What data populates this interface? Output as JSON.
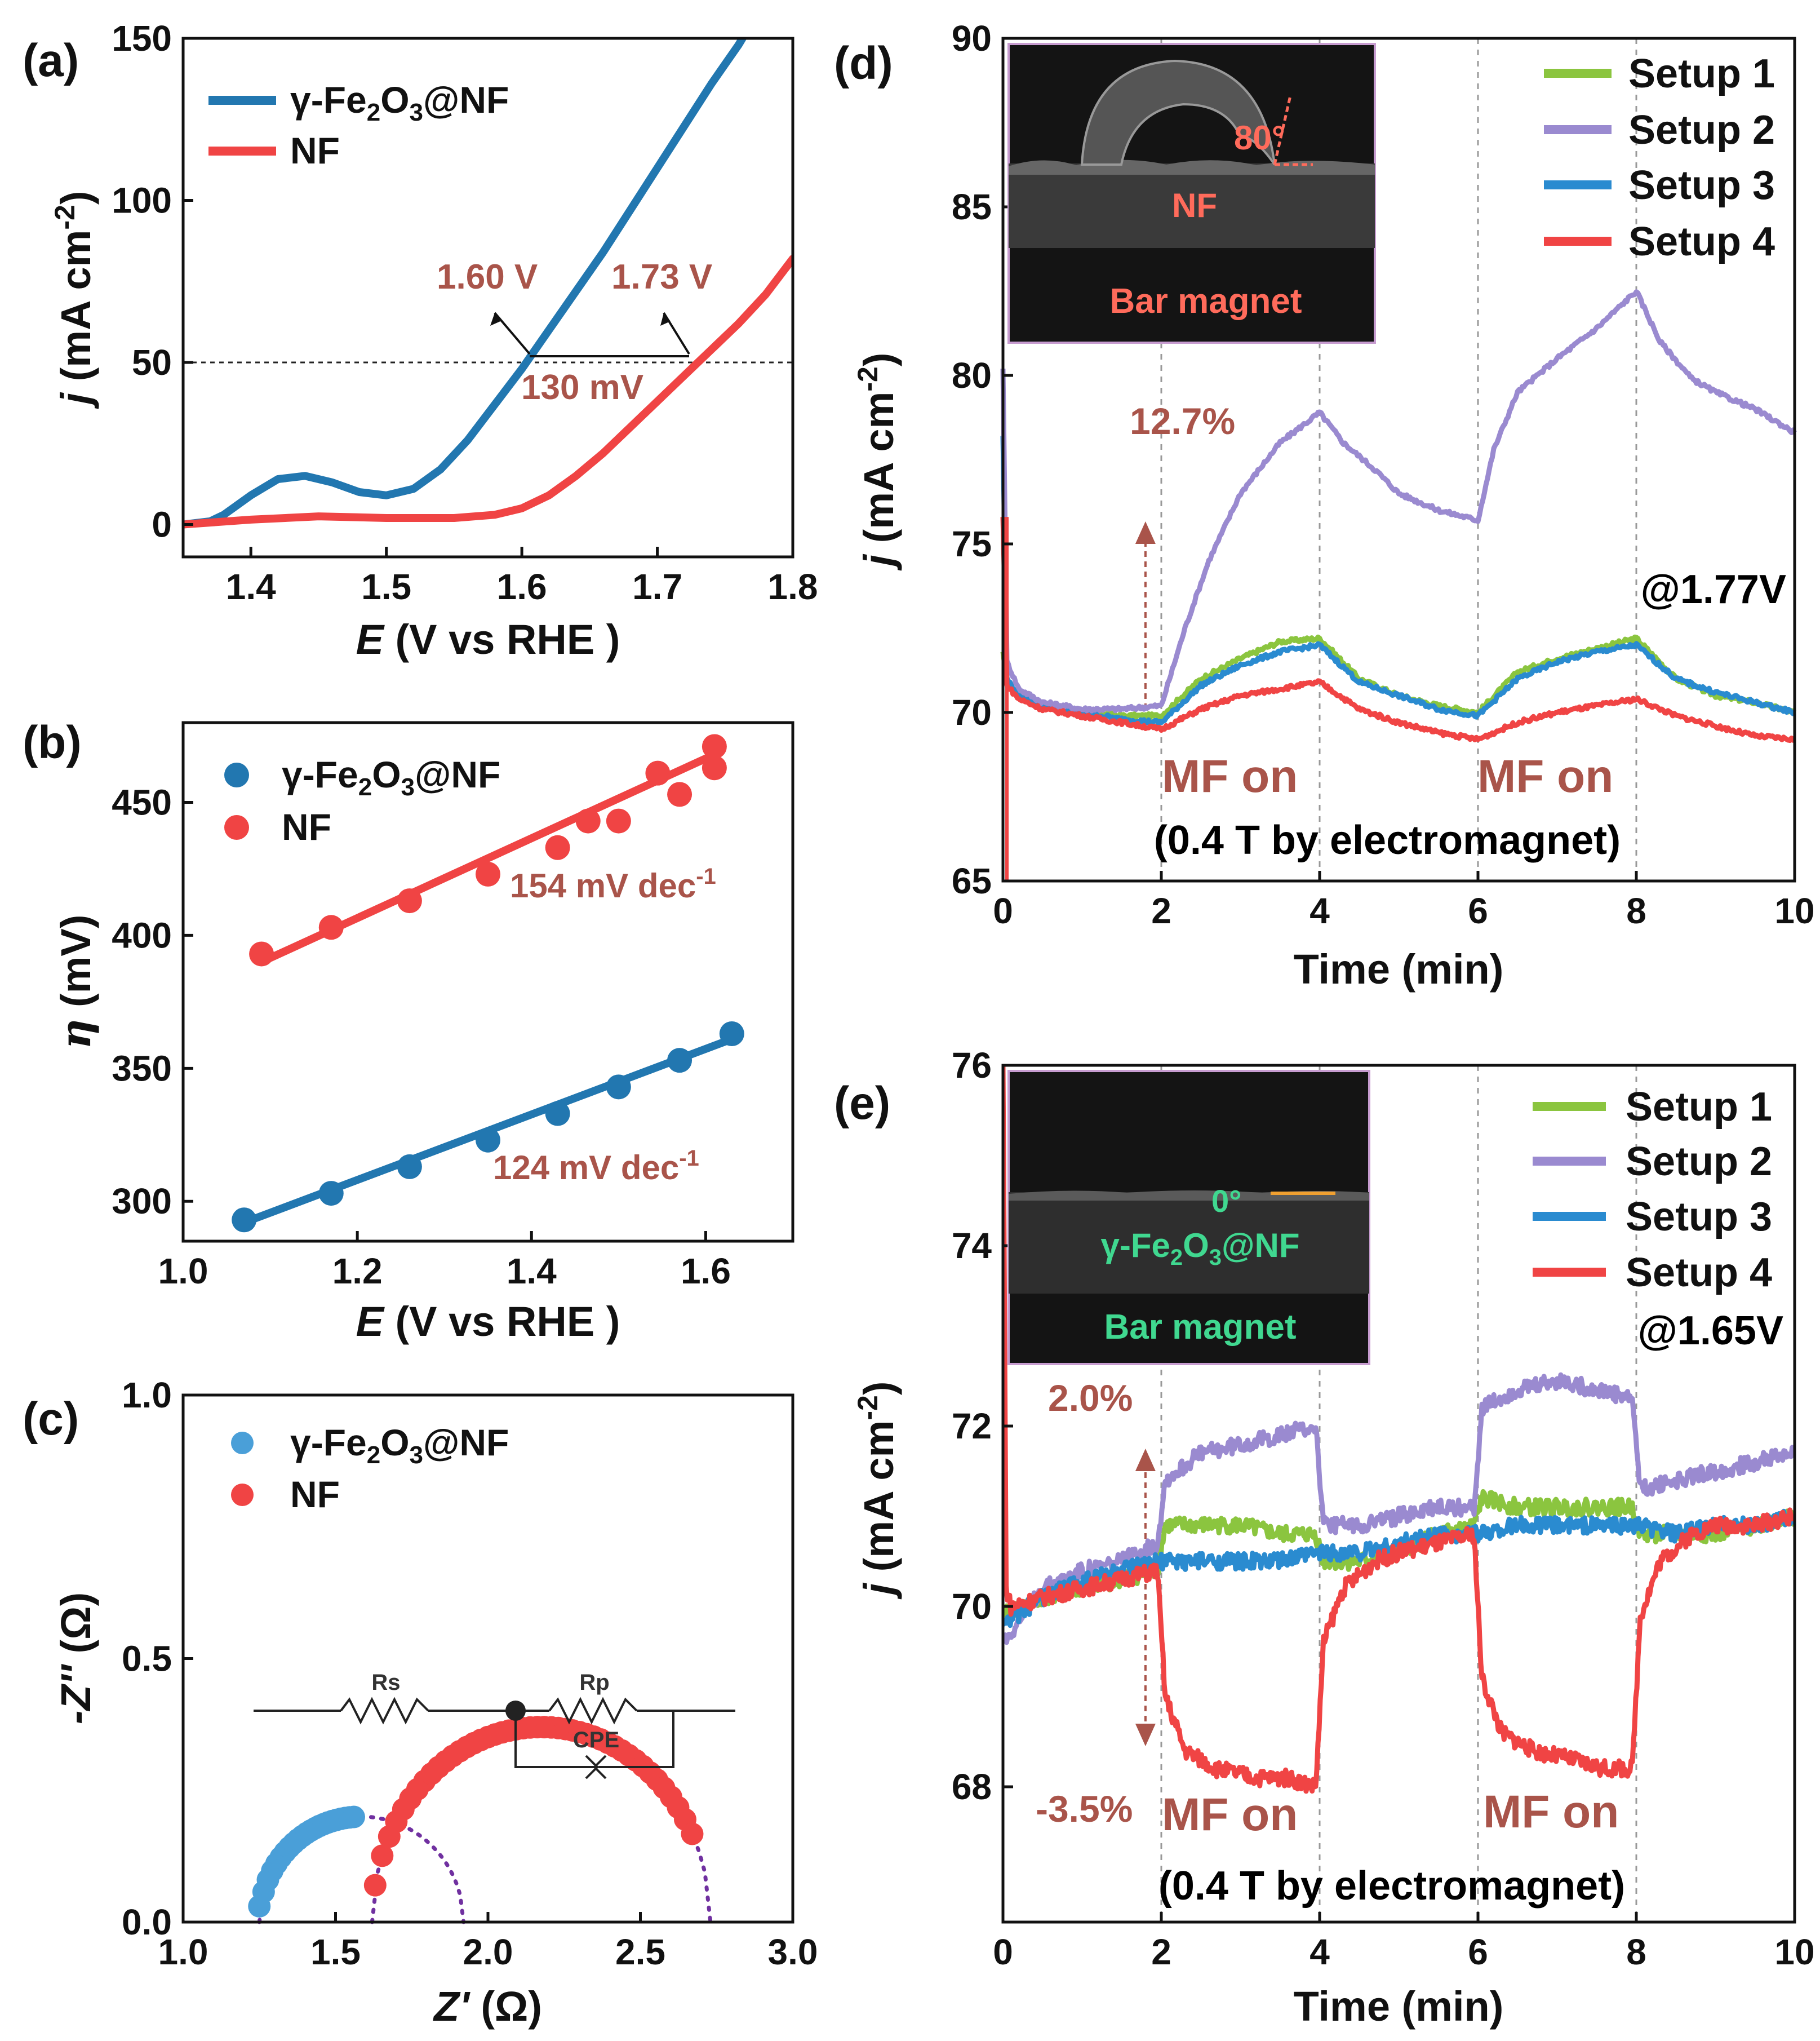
{
  "colors": {
    "blue": "#2277b0",
    "red": "#f04444",
    "green": "#8bc53f",
    "purple": "#9a8ad0",
    "annotation": "#a9544a",
    "fit": "#7030a0",
    "contact_green": "#40d890"
  },
  "chart_data": [
    {
      "id": "a",
      "panel_label": "(a)",
      "type": "line",
      "xlabel_italic": "E",
      "xlabel_rest": " (V vs RHE )",
      "ylabel_italic": "j",
      "ylabel_rest": " (mA cm",
      "ylabel_sup": "-2",
      "ylabel_close": ")",
      "xlim": [
        1.35,
        1.8
      ],
      "ylim": [
        -10,
        150
      ],
      "xticks": [
        "1.4",
        "1.5",
        "1.6",
        "1.7",
        "1.8"
      ],
      "xtick_values": [
        1.4,
        1.5,
        1.6,
        1.7,
        1.8
      ],
      "yticks": [
        "0",
        "50",
        "100",
        "150"
      ],
      "ytick_values": [
        0,
        50,
        100,
        150
      ],
      "reference_line_y": 50,
      "legend": {
        "series1_prefix": "γ-Fe",
        "series1_sub1": "2",
        "series1_mid": "O",
        "series1_sub2": "3",
        "series1_suffix": "@NF",
        "series2": "NF"
      },
      "annotations": {
        "v1": "1.60 V",
        "v2": "1.73 V",
        "diff": "130 mV"
      },
      "series": [
        {
          "name": "γ-Fe2O3@NF",
          "color": "#2277b0",
          "x": [
            1.35,
            1.37,
            1.38,
            1.4,
            1.42,
            1.44,
            1.46,
            1.48,
            1.5,
            1.52,
            1.54,
            1.56,
            1.58,
            1.6,
            1.62,
            1.64,
            1.66,
            1.68,
            1.7,
            1.72,
            1.74,
            1.76,
            1.77
          ],
          "y": [
            0,
            1,
            3,
            9,
            14,
            15,
            13,
            10,
            9,
            11,
            17,
            26,
            37,
            48,
            60,
            72,
            84,
            97,
            110,
            123,
            136,
            148,
            155
          ]
        },
        {
          "name": "NF",
          "color": "#f04444",
          "x": [
            1.35,
            1.4,
            1.45,
            1.5,
            1.55,
            1.58,
            1.6,
            1.62,
            1.64,
            1.66,
            1.68,
            1.7,
            1.72,
            1.74,
            1.76,
            1.78,
            1.8
          ],
          "y": [
            0,
            1.5,
            2.5,
            2,
            2,
            3,
            5,
            9,
            15,
            22,
            30,
            38,
            46,
            54,
            62,
            71,
            82
          ]
        }
      ]
    },
    {
      "id": "b",
      "panel_label": "(b)",
      "type": "scatter",
      "xlabel_italic": "E",
      "xlabel_rest": " (V vs RHE )",
      "ylabel_italic": "η",
      "ylabel_rest": " (mV)",
      "xlim": [
        1.0,
        1.7
      ],
      "ylim": [
        285,
        480
      ],
      "xticks": [
        "1.0",
        "1.2",
        "1.4",
        "1.6"
      ],
      "xtick_values": [
        1.0,
        1.2,
        1.4,
        1.6
      ],
      "yticks": [
        "300",
        "350",
        "400",
        "450"
      ],
      "ytick_values": [
        300,
        350,
        400,
        450
      ],
      "legend": {
        "series1_prefix": "γ-Fe",
        "series1_sub1": "2",
        "series1_mid": "O",
        "series1_sub2": "3",
        "series1_suffix": "@NF",
        "series2": "NF"
      },
      "annotations": {
        "slope_nf": "154 mV dec",
        "slope_fe": "124 mV dec",
        "slope_exp": "-1"
      },
      "series": [
        {
          "name": "γ-Fe2O3@NF",
          "color": "#2277b0",
          "x": [
            1.07,
            1.17,
            1.26,
            1.35,
            1.43,
            1.5,
            1.57,
            1.63
          ],
          "y": [
            293,
            303,
            313,
            323,
            333,
            343,
            353,
            363
          ],
          "fit": [
            [
              1.07,
              292
            ],
            [
              1.63,
              361
            ]
          ]
        },
        {
          "name": "NF",
          "color": "#f04444",
          "x": [
            1.09,
            1.17,
            1.26,
            1.35,
            1.43,
            1.5,
            1.57,
            1.61
          ],
          "y": [
            393,
            403,
            413,
            423,
            433,
            443,
            453,
            463
          ],
          "fit": [
            [
              1.09,
              390
            ],
            [
              1.61,
              468
            ]
          ],
          "extra": [
            [
              1.465,
              443
            ],
            [
              1.545,
              461
            ],
            [
              1.61,
              471
            ]
          ]
        }
      ]
    },
    {
      "id": "c",
      "panel_label": "(c)",
      "type": "scatter",
      "xlabel_italic": "Z'",
      "xlabel_rest": " (Ω)",
      "ylabel_italic": "-Z''",
      "ylabel_rest": " (Ω)",
      "xlim": [
        1.0,
        3.0
      ],
      "ylim": [
        0.0,
        1.0
      ],
      "xticks": [
        "1.0",
        "1.5",
        "2.0",
        "2.5",
        "3.0"
      ],
      "xtick_values": [
        1.0,
        1.5,
        2.0,
        2.5,
        3.0
      ],
      "yticks": [
        "0.0",
        "0.5",
        "1.0"
      ],
      "ytick_values": [
        0.0,
        0.5,
        1.0
      ],
      "legend": {
        "series1_prefix": "γ-Fe",
        "series1_sub1": "2",
        "series1_mid": "O",
        "series1_sub2": "3",
        "series1_suffix": "@NF",
        "series2": "NF"
      },
      "circuit": {
        "rs": "Rs",
        "rp": "Rp",
        "cpe": "CPE"
      },
      "series": [
        {
          "name": "γ-Fe2O3@NF",
          "color": "#4a9fd8",
          "arc_start": 1.25,
          "arc_end": 1.92,
          "arc_height": 0.2,
          "data_x": [
            1.25,
            1.56
          ]
        },
        {
          "name": "NF",
          "color": "#f04444",
          "arc_start": 1.62,
          "arc_end": 2.73,
          "arc_height": 0.37,
          "data_x": [
            1.63,
            2.67
          ]
        }
      ]
    },
    {
      "id": "d",
      "panel_label": "(d)",
      "type": "line",
      "xlabel": "Time (min)",
      "ylabel_italic": "j",
      "ylabel_rest": " (mA cm",
      "ylabel_sup": "-2",
      "ylabel_close": ")",
      "xlim": [
        0,
        10
      ],
      "ylim": [
        65,
        90
      ],
      "xticks": [
        "0",
        "2",
        "4",
        "6",
        "8",
        "10"
      ],
      "xtick_values": [
        0,
        2,
        4,
        6,
        8,
        10
      ],
      "yticks": [
        "65",
        "70",
        "75",
        "80",
        "85",
        "90"
      ],
      "ytick_values": [
        65,
        70,
        75,
        80,
        85,
        90
      ],
      "legend": [
        "Setup 1",
        "Setup 2",
        "Setup 3",
        "Setup 4"
      ],
      "potential": "@1.77V",
      "percent_label": "12.7%",
      "mf_on_label": "MF on",
      "field_note": "(0.4 T by electromagnet)",
      "inset": {
        "angle": "80°",
        "substrate": "NF",
        "magnet": "Bar magnet"
      },
      "series": [
        {
          "name": "Setup 1",
          "color": "#8bc53f",
          "x": [
            0,
            0.05,
            0.2,
            0.5,
            1,
            1.5,
            2,
            2.5,
            3,
            3.5,
            4,
            4.5,
            5,
            5.5,
            6,
            6.5,
            7,
            7.5,
            8,
            8.5,
            9,
            9.5,
            10
          ],
          "y": [
            71.8,
            70.9,
            70.5,
            70.2,
            70.0,
            69.9,
            69.9,
            71.0,
            71.6,
            72.1,
            72.2,
            71.0,
            70.5,
            70.2,
            70.0,
            71.2,
            71.6,
            71.9,
            72.2,
            71.0,
            70.5,
            70.3,
            70.0
          ]
        },
        {
          "name": "Setup 2",
          "color": "#9a8ad0",
          "x": [
            0,
            0.05,
            0.2,
            0.5,
            1,
            1.5,
            2,
            2.3,
            2.6,
            3,
            3.5,
            4,
            4.3,
            4.7,
            5,
            5.5,
            6,
            6.2,
            6.5,
            7,
            7.5,
            8,
            8.3,
            8.7,
            9,
            9.5,
            10
          ],
          "y": [
            80.2,
            71.5,
            70.7,
            70.3,
            70.1,
            70.1,
            70.2,
            72.5,
            74.5,
            76.5,
            78.0,
            78.9,
            78.0,
            77.2,
            76.5,
            76.0,
            75.7,
            77.8,
            79.5,
            80.5,
            81.4,
            82.5,
            81.0,
            79.9,
            79.5,
            79.0,
            78.3
          ]
        },
        {
          "name": "Setup 3",
          "color": "#2a8bd0",
          "x": [
            0,
            0.05,
            0.2,
            0.5,
            1,
            1.5,
            2,
            2.5,
            3,
            3.5,
            4,
            4.5,
            5,
            5.5,
            6,
            6.5,
            7,
            7.5,
            8,
            8.5,
            9,
            9.5,
            10
          ],
          "y": [
            78.2,
            71.0,
            70.5,
            70.2,
            70.0,
            69.8,
            69.7,
            70.8,
            71.4,
            71.8,
            72.0,
            70.9,
            70.5,
            70.1,
            69.9,
            71.0,
            71.5,
            71.8,
            72.0,
            71.0,
            70.6,
            70.3,
            70.0
          ]
        },
        {
          "name": "Setup 4",
          "color": "#f04444",
          "x": [
            0,
            0.05,
            0.2,
            0.5,
            1,
            1.5,
            2,
            2.5,
            3,
            3.5,
            4,
            4.5,
            5,
            5.5,
            6,
            6.5,
            7,
            7.5,
            8,
            8.5,
            9,
            9.5,
            10
          ],
          "y": [
            75.8,
            70.8,
            70.4,
            70.1,
            69.9,
            69.7,
            69.5,
            70.1,
            70.5,
            70.7,
            70.9,
            70.1,
            69.7,
            69.4,
            69.2,
            69.7,
            70.0,
            70.2,
            70.4,
            69.9,
            69.6,
            69.3,
            69.2
          ]
        }
      ]
    },
    {
      "id": "e",
      "panel_label": "(e)",
      "type": "line",
      "xlabel": "Time (min)",
      "ylabel_italic": "j",
      "ylabel_rest": " (mA cm",
      "ylabel_sup": "-2",
      "ylabel_close": ")",
      "xlim": [
        0,
        10
      ],
      "ylim": [
        66.5,
        76
      ],
      "xticks": [
        "0",
        "2",
        "4",
        "6",
        "8",
        "10"
      ],
      "xtick_values": [
        0,
        2,
        4,
        6,
        8,
        10
      ],
      "yticks": [
        "68",
        "70",
        "72",
        "74",
        "76"
      ],
      "ytick_values": [
        68,
        70,
        72,
        74,
        76
      ],
      "legend": [
        "Setup 1",
        "Setup 2",
        "Setup 3",
        "Setup 4"
      ],
      "potential": "@1.65V",
      "percent_up": "2.0%",
      "percent_down": "-3.5%",
      "mf_on_label": "MF on",
      "field_note": "(0.4 T by electromagnet)",
      "inset": {
        "angle": "0°",
        "substrate_prefix": "γ-Fe",
        "substrate_sub1": "2",
        "substrate_mid": "O",
        "substrate_sub2": "3",
        "substrate_suffix": "@NF",
        "magnet": "Bar magnet"
      },
      "series": [
        {
          "name": "Setup 1",
          "color": "#8bc53f",
          "x": [
            0,
            0.5,
            1,
            1.5,
            1.95,
            2.05,
            2.5,
            3,
            3.5,
            3.95,
            4.05,
            4.5,
            5,
            5.5,
            5.95,
            6.05,
            6.5,
            7,
            7.5,
            7.95,
            8.05,
            8.5,
            9,
            9.5,
            10
          ],
          "y": [
            69.9,
            70.1,
            70.2,
            70.3,
            70.4,
            70.9,
            70.9,
            70.9,
            70.8,
            70.8,
            70.5,
            70.5,
            70.6,
            70.8,
            70.9,
            71.2,
            71.1,
            71.1,
            71.1,
            71.1,
            70.8,
            70.8,
            70.8,
            70.9,
            71.0
          ]
        },
        {
          "name": "Setup 2",
          "color": "#9a8ad0",
          "x": [
            0,
            0.5,
            1,
            1.5,
            1.95,
            2.05,
            2.5,
            3,
            3.5,
            3.95,
            4.05,
            4.5,
            5,
            5.5,
            5.95,
            6.05,
            6.5,
            7,
            7.5,
            7.95,
            8.05,
            8.5,
            9,
            9.5,
            10
          ],
          "y": [
            69.6,
            70.2,
            70.4,
            70.5,
            70.7,
            71.4,
            71.7,
            71.8,
            71.9,
            72.0,
            70.9,
            70.9,
            71.0,
            71.1,
            71.1,
            72.2,
            72.4,
            72.5,
            72.4,
            72.3,
            71.3,
            71.4,
            71.5,
            71.6,
            71.7
          ]
        },
        {
          "name": "Setup 3",
          "color": "#2a8bd0",
          "x": [
            0,
            0.5,
            1,
            1.5,
            2,
            2.5,
            3,
            3.5,
            4,
            4.5,
            5,
            5.5,
            6,
            6.5,
            7,
            7.5,
            8,
            8.5,
            9,
            9.5,
            10
          ],
          "y": [
            69.8,
            70.1,
            70.3,
            70.4,
            70.5,
            70.5,
            70.5,
            70.5,
            70.6,
            70.6,
            70.7,
            70.8,
            70.8,
            70.9,
            70.9,
            70.9,
            70.9,
            70.8,
            70.9,
            70.9,
            71.0
          ]
        },
        {
          "name": "Setup 4",
          "color": "#f04444",
          "x": [
            0,
            0.04,
            0.1,
            0.5,
            1,
            1.5,
            1.95,
            2.05,
            2.3,
            2.7,
            3.2,
            3.6,
            3.95,
            4.05,
            4.3,
            4.7,
            5,
            5.5,
            5.95,
            6.05,
            6.3,
            6.7,
            7.2,
            7.6,
            7.95,
            8.05,
            8.3,
            8.7,
            9,
            9.5,
            10
          ],
          "y": [
            76,
            70.2,
            70.0,
            70.1,
            70.2,
            70.3,
            70.4,
            69.0,
            68.4,
            68.2,
            68.1,
            68.1,
            68.0,
            69.6,
            70.2,
            70.5,
            70.6,
            70.7,
            70.8,
            69.2,
            68.6,
            68.4,
            68.3,
            68.2,
            68.2,
            69.9,
            70.5,
            70.8,
            70.9,
            70.9,
            71.0
          ]
        }
      ]
    }
  ]
}
